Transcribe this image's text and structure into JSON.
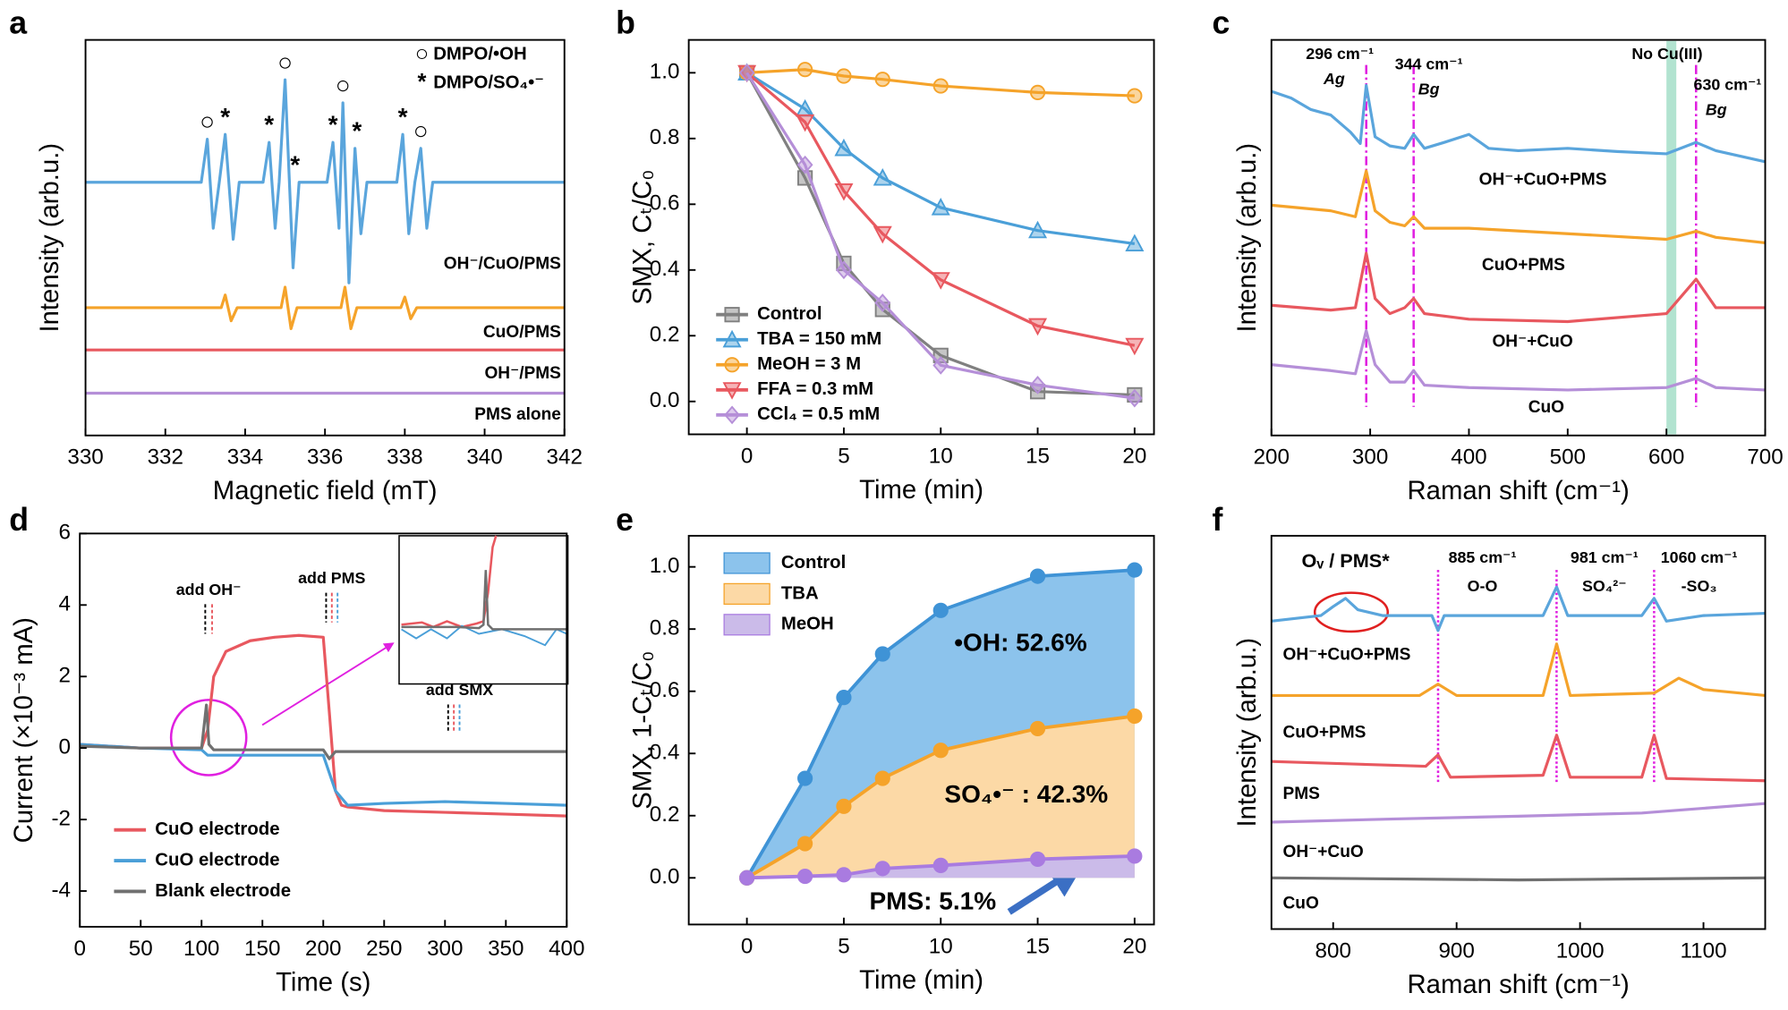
{
  "chart_data": [
    {
      "panel": "a",
      "type": "line",
      "xlabel": "Magnetic field (mT)",
      "ylabel": "Intensity (arb.u.)",
      "xlim": [
        330,
        342
      ],
      "xticks": [
        330,
        332,
        334,
        336,
        338,
        340,
        342
      ],
      "ylim": [
        0,
        10
      ],
      "series": [
        {
          "name": "OH⁻/CuO/PMS",
          "color": "#5aa5dc",
          "x": [
            330,
            332.9,
            333.05,
            333.2,
            333.35,
            333.5,
            333.7,
            333.85,
            334.45,
            334.6,
            334.75,
            334.85,
            335.0,
            335.2,
            335.35,
            336.05,
            336.2,
            336.35,
            336.45,
            336.6,
            336.75,
            336.9,
            337.05,
            337.8,
            337.95,
            338.1,
            338.25,
            338.4,
            338.55,
            338.7,
            342
          ],
          "values": [
            6.4,
            6.4,
            7.49,
            5.24,
            6.4,
            7.61,
            4.96,
            6.4,
            6.4,
            7.41,
            5.24,
            6.4,
            8.99,
            4.24,
            6.4,
            6.4,
            7.41,
            5.24,
            8.41,
            3.86,
            7.26,
            5.1,
            6.4,
            6.4,
            7.61,
            5.1,
            6.4,
            7.26,
            5.24,
            6.4,
            6.4
          ]
        },
        {
          "name": "CuO/PMS",
          "color": "#f5a32a",
          "x": [
            330,
            333.4,
            333.5,
            333.65,
            333.8,
            334.9,
            335.0,
            335.15,
            335.3,
            336.4,
            336.5,
            336.65,
            336.8,
            337.9,
            338.0,
            338.15,
            338.3,
            342
          ],
          "values": [
            3.23,
            3.23,
            3.55,
            2.9,
            3.23,
            3.23,
            3.75,
            2.7,
            3.23,
            3.23,
            3.75,
            2.7,
            3.23,
            3.23,
            3.5,
            2.95,
            3.23,
            3.23
          ]
        },
        {
          "name": "OH⁻/PMS",
          "color": "#e8585f",
          "x": [
            330,
            342
          ],
          "values": [
            2.16,
            2.16
          ]
        },
        {
          "name": "PMS alone",
          "color": "#b58fd8",
          "x": [
            330,
            342
          ],
          "values": [
            1.07,
            1.07
          ]
        }
      ],
      "legend": [
        {
          "symbol": "○",
          "label": "DMPO/•OH"
        },
        {
          "symbol": "*",
          "label": "DMPO/SO₄•⁻"
        }
      ],
      "peak_markers": [
        {
          "x": 333.05,
          "symbol": "○"
        },
        {
          "x": 333.5,
          "symbol": "*"
        },
        {
          "x": 334.6,
          "symbol": "*"
        },
        {
          "x": 335.0,
          "symbol": "○"
        },
        {
          "x": 335.25,
          "symbol": "*"
        },
        {
          "x": 336.2,
          "symbol": "*"
        },
        {
          "x": 336.45,
          "symbol": "○"
        },
        {
          "x": 336.8,
          "symbol": "*"
        },
        {
          "x": 337.95,
          "symbol": "*"
        },
        {
          "x": 338.4,
          "symbol": "○"
        }
      ]
    },
    {
      "panel": "b",
      "type": "line",
      "xlabel": "Time (min)",
      "ylabel": "SMX, Cₜ/C₀",
      "xlim": [
        -3,
        21
      ],
      "xticks": [
        0,
        5,
        10,
        15,
        20
      ],
      "ylim": [
        -0.1,
        1.1
      ],
      "yticks": [
        {
          "value": 0,
          "label": "0.0"
        },
        0.2,
        0.4,
        0.6,
        0.8,
        {
          "value": 1,
          "label": "1.0"
        }
      ],
      "x": [
        0,
        3,
        5,
        7,
        10,
        15,
        20
      ],
      "legend": "lower left",
      "series": [
        {
          "name": "Control",
          "color": "#808080",
          "marker": "square",
          "values": [
            1.0,
            0.68,
            0.42,
            0.28,
            0.14,
            0.03,
            0.02
          ]
        },
        {
          "name": "TBA = 150 mM",
          "color": "#4a9fd8",
          "marker": "triangle",
          "values": [
            1.0,
            0.89,
            0.77,
            0.68,
            0.59,
            0.52,
            0.48
          ]
        },
        {
          "name": "MeOH = 3 M",
          "color": "#f5a32a",
          "marker": "circle",
          "values": [
            1.0,
            1.01,
            0.99,
            0.98,
            0.96,
            0.94,
            0.93
          ]
        },
        {
          "name": "FFA = 0.3 mM",
          "color": "#e8585f",
          "marker": "triangle-down",
          "values": [
            1.0,
            0.85,
            0.64,
            0.51,
            0.37,
            0.23,
            0.17
          ]
        },
        {
          "name": "CCl₄ = 0.5 mM",
          "color": "#b58fd8",
          "marker": "diamond",
          "values": [
            1.0,
            0.72,
            0.4,
            0.3,
            0.11,
            0.05,
            0.01
          ]
        }
      ]
    },
    {
      "panel": "c",
      "type": "line",
      "xlabel": "Raman shift (cm⁻¹)",
      "ylabel": "Intensity (arb.u.)",
      "xlim": [
        200,
        700
      ],
      "xticks": [
        200,
        300,
        400,
        500,
        600,
        700
      ],
      "ylim": [
        0,
        10
      ],
      "vlines": [
        296,
        344,
        630
      ],
      "band": [
        600,
        610
      ],
      "annotations": [
        "296 cm⁻¹",
        "Ag",
        "344 cm⁻¹",
        "Bg",
        "No Cu(III)",
        "630 cm⁻¹",
        "Bg"
      ],
      "series": [
        {
          "name": "OH⁻+CuO+PMS",
          "color": "#5aa5dc",
          "x": [
            200,
            220,
            240,
            260,
            280,
            290,
            296,
            305,
            320,
            335,
            344,
            355,
            375,
            400,
            420,
            450,
            500,
            550,
            600,
            630,
            650,
            700
          ],
          "values": [
            8.7,
            8.53,
            8.24,
            8.1,
            7.67,
            7.38,
            8.85,
            7.55,
            7.32,
            7.26,
            7.61,
            7.26,
            7.41,
            7.61,
            7.26,
            7.2,
            7.26,
            7.18,
            7.12,
            7.41,
            7.2,
            6.92
          ]
        },
        {
          "name": "CuO+PMS",
          "color": "#f5a32a",
          "x": [
            200,
            260,
            285,
            296,
            305,
            320,
            335,
            344,
            355,
            400,
            500,
            600,
            630,
            650,
            700
          ],
          "values": [
            5.82,
            5.68,
            5.53,
            6.69,
            5.68,
            5.39,
            5.3,
            5.53,
            5.24,
            5.24,
            5.1,
            4.96,
            5.16,
            5.01,
            4.87
          ]
        },
        {
          "name": "OH⁻+CuO",
          "color": "#e8585f",
          "x": [
            200,
            260,
            285,
            296,
            305,
            320,
            335,
            344,
            355,
            400,
            500,
            600,
            630,
            650,
            700
          ],
          "values": [
            3.29,
            3.17,
            3.23,
            4.61,
            3.46,
            3.08,
            3.23,
            3.46,
            3.08,
            2.94,
            2.88,
            3.08,
            3.95,
            3.23,
            3.23
          ]
        },
        {
          "name": "CuO",
          "color": "#b58fd8",
          "x": [
            200,
            260,
            285,
            296,
            305,
            320,
            335,
            344,
            355,
            400,
            500,
            600,
            630,
            650,
            700
          ],
          "values": [
            1.79,
            1.64,
            1.56,
            2.65,
            1.79,
            1.35,
            1.35,
            1.64,
            1.27,
            1.21,
            1.15,
            1.21,
            1.44,
            1.21,
            1.15
          ]
        }
      ]
    },
    {
      "panel": "d",
      "type": "line",
      "xlabel": "Time (s)",
      "ylabel": "Current (×10⁻³ mA)",
      "xlim": [
        0,
        400
      ],
      "xticks": [
        0,
        50,
        100,
        150,
        200,
        250,
        300,
        350,
        400
      ],
      "ylim": [
        -5,
        6
      ],
      "yticks": [
        -4,
        -2,
        0,
        2,
        4,
        6
      ],
      "legend": "lower left",
      "annotations": [
        "add OH⁻",
        "add PMS",
        "add SMX"
      ],
      "series": [
        {
          "name": "CuO electrode",
          "color": "#e8585f",
          "x": [
            0,
            50,
            100,
            105,
            110,
            120,
            140,
            160,
            180,
            200,
            205,
            210,
            215,
            220,
            250,
            300,
            350,
            400
          ],
          "values": [
            0.1,
            0,
            0,
            0.5,
            2.0,
            2.7,
            3.0,
            3.1,
            3.15,
            3.1,
            1.0,
            -1.2,
            -1.6,
            -1.65,
            -1.75,
            -1.8,
            -1.85,
            -1.9
          ]
        },
        {
          "name": "CuO electrode",
          "color": "#4a9fd8",
          "x": [
            0,
            50,
            100,
            105,
            200,
            210,
            220,
            250,
            300,
            350,
            400
          ],
          "values": [
            0.1,
            0,
            -0.05,
            -0.2,
            -0.2,
            -1.2,
            -1.6,
            -1.55,
            -1.5,
            -1.55,
            -1.6
          ]
        },
        {
          "name": "Blank electrode",
          "color": "#707070",
          "x": [
            0,
            50,
            100,
            104,
            106,
            110,
            200,
            205,
            210,
            300,
            400
          ],
          "values": [
            0.05,
            0,
            0,
            1.2,
            0.1,
            -0.05,
            -0.05,
            -0.3,
            -0.1,
            -0.1,
            -0.1
          ]
        }
      ]
    },
    {
      "panel": "e",
      "type": "area",
      "xlabel": "Time (min)",
      "ylabel": "SMX, 1-Cₜ/C₀",
      "xlim": [
        -3,
        21
      ],
      "xticks": [
        0,
        5,
        10,
        15,
        20
      ],
      "ylim": [
        -0.15,
        1.1
      ],
      "yticks": [
        {
          "value": 0,
          "label": "0.0"
        },
        0.2,
        0.4,
        0.6,
        0.8,
        {
          "value": 1,
          "label": "1.0"
        }
      ],
      "x": [
        0,
        3,
        5,
        7,
        10,
        15,
        20
      ],
      "legend": "upper left",
      "annotations": [
        "•OH: 52.6%",
        "SO₄•⁻ : 42.3%",
        "PMS: 5.1%"
      ],
      "series": [
        {
          "name": "Control",
          "color": "#3f93d6",
          "fill": "#8cc3ec",
          "values": [
            0,
            0.32,
            0.58,
            0.72,
            0.86,
            0.97,
            0.99
          ]
        },
        {
          "name": "TBA",
          "color": "#f5a32a",
          "fill": "#fcd9a6",
          "values": [
            0,
            0.11,
            0.23,
            0.32,
            0.41,
            0.48,
            0.52
          ]
        },
        {
          "name": "MeOH",
          "color": "#a97be0",
          "fill": "#cbbbe9",
          "values": [
            0,
            0.005,
            0.01,
            0.03,
            0.04,
            0.06,
            0.07
          ]
        }
      ]
    },
    {
      "panel": "f",
      "type": "line",
      "xlabel": "Raman shift (cm⁻¹)",
      "ylabel": "Intensity (arb.u.)",
      "xlim": [
        750,
        1150
      ],
      "xticks": [
        800,
        900,
        1000,
        1100
      ],
      "ylim": [
        0,
        10
      ],
      "vlines": [
        885,
        981,
        1060
      ],
      "annotations": [
        "Oᵥ / PMS*",
        "885 cm⁻¹",
        "O-O",
        "981 cm⁻¹",
        "SO₄²⁻",
        "1060 cm⁻¹",
        "-SO₃"
      ],
      "series": [
        {
          "name": "OH⁻+CuO+PMS",
          "color": "#5aa5dc",
          "x": [
            750,
            790,
            800,
            810,
            820,
            840,
            880,
            885,
            890,
            970,
            981,
            990,
            1050,
            1060,
            1070,
            1100,
            1150
          ],
          "values": [
            7.83,
            7.97,
            8.2,
            8.41,
            8.12,
            7.97,
            7.97,
            7.59,
            7.97,
            7.97,
            8.7,
            7.97,
            7.97,
            8.41,
            7.83,
            7.97,
            8.03
          ]
        },
        {
          "name": "CuO+PMS",
          "color": "#f5a32a",
          "x": [
            750,
            870,
            885,
            900,
            970,
            981,
            992,
            1060,
            1080,
            1100,
            1150
          ],
          "values": [
            5.94,
            5.94,
            6.23,
            5.94,
            5.94,
            7.25,
            5.94,
            6.0,
            6.38,
            6.09,
            5.94
          ]
        },
        {
          "name": "PMS",
          "color": "#e8585f",
          "x": [
            750,
            875,
            885,
            895,
            970,
            981,
            992,
            1050,
            1060,
            1070,
            1150
          ],
          "values": [
            4.26,
            4.14,
            4.43,
            3.86,
            3.91,
            4.93,
            3.86,
            3.86,
            4.93,
            3.83,
            3.77
          ]
        },
        {
          "name": "OH⁻+CuO",
          "color": "#b58fd8",
          "x": [
            750,
            850,
            950,
            1050,
            1150
          ],
          "values": [
            2.72,
            2.8,
            2.87,
            2.95,
            3.19
          ]
        },
        {
          "name": "CuO",
          "color": "#707070",
          "x": [
            750,
            950,
            1150
          ],
          "values": [
            1.3,
            1.25,
            1.3
          ]
        }
      ]
    }
  ]
}
